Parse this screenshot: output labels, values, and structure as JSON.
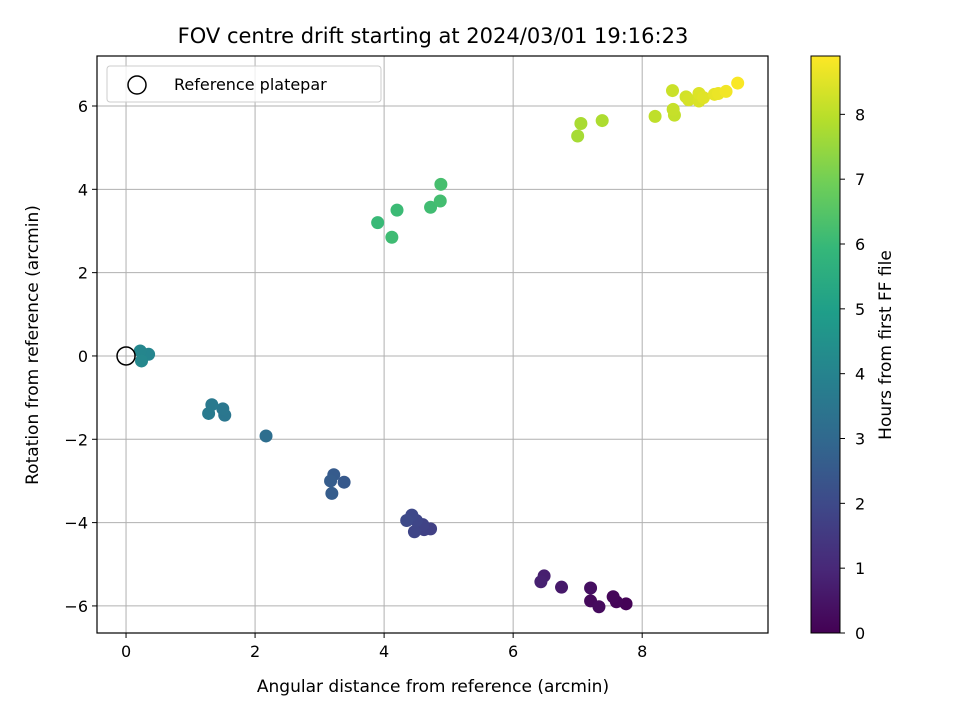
{
  "chart_data": {
    "type": "scatter",
    "title": "FOV centre drift starting at 2024/03/01 19:16:23",
    "xlabel": "Angular distance from reference (arcmin)",
    "ylabel": "Rotation from reference (arcmin)",
    "xlim": [
      -0.45,
      9.95
    ],
    "ylim": [
      -6.65,
      7.2
    ],
    "xticks": [
      0,
      2,
      4,
      6,
      8
    ],
    "yticks": [
      -6,
      -4,
      -2,
      0,
      2,
      4,
      6
    ],
    "xtick_labels": [
      "0",
      "2",
      "4",
      "6",
      "8"
    ],
    "ytick_labels": [
      "−6",
      "−4",
      "−2",
      "0",
      "2",
      "4",
      "6"
    ],
    "grid": true,
    "legend": {
      "placement": "top-left",
      "entries": [
        "Reference platepar"
      ]
    },
    "reference_point": {
      "x": 0,
      "y": 0
    },
    "colorbar": {
      "label": "Hours from first FF file",
      "range": [
        0,
        8.9
      ],
      "ticks": [
        0,
        1,
        2,
        3,
        4,
        5,
        6,
        7,
        8
      ],
      "colormap": "viridis"
    },
    "points": [
      {
        "x": 7.75,
        "y": -5.95,
        "hours": 0.05
      },
      {
        "x": 7.6,
        "y": -5.9,
        "hours": 0.1
      },
      {
        "x": 7.55,
        "y": -5.78,
        "hours": 0.15
      },
      {
        "x": 7.2,
        "y": -5.88,
        "hours": 0.2
      },
      {
        "x": 7.33,
        "y": -6.02,
        "hours": 0.25
      },
      {
        "x": 7.2,
        "y": -5.57,
        "hours": 0.35
      },
      {
        "x": 6.75,
        "y": -5.55,
        "hours": 0.6
      },
      {
        "x": 6.48,
        "y": -5.28,
        "hours": 0.75
      },
      {
        "x": 6.43,
        "y": -5.42,
        "hours": 0.8
      },
      {
        "x": 4.72,
        "y": -4.15,
        "hours": 1.7
      },
      {
        "x": 4.62,
        "y": -4.17,
        "hours": 1.75
      },
      {
        "x": 4.6,
        "y": -4.05,
        "hours": 1.8
      },
      {
        "x": 4.47,
        "y": -4.22,
        "hours": 1.85
      },
      {
        "x": 4.5,
        "y": -3.95,
        "hours": 1.9
      },
      {
        "x": 4.43,
        "y": -3.82,
        "hours": 1.95
      },
      {
        "x": 4.35,
        "y": -3.95,
        "hours": 2.0
      },
      {
        "x": 3.38,
        "y": -3.03,
        "hours": 2.5
      },
      {
        "x": 3.22,
        "y": -2.85,
        "hours": 2.55
      },
      {
        "x": 3.17,
        "y": -3.0,
        "hours": 2.6
      },
      {
        "x": 3.19,
        "y": -3.3,
        "hours": 2.62
      },
      {
        "x": 2.17,
        "y": -1.92,
        "hours": 3.2
      },
      {
        "x": 1.53,
        "y": -1.42,
        "hours": 3.5
      },
      {
        "x": 1.5,
        "y": -1.27,
        "hours": 3.55
      },
      {
        "x": 1.33,
        "y": -1.17,
        "hours": 3.6
      },
      {
        "x": 1.28,
        "y": -1.38,
        "hours": 3.65
      },
      {
        "x": 0.35,
        "y": 0.04,
        "hours": 4.05
      },
      {
        "x": 0.22,
        "y": 0.12,
        "hours": 4.1
      },
      {
        "x": 0.24,
        "y": -0.12,
        "hours": 4.15
      },
      {
        "x": 3.9,
        "y": 3.2,
        "hours": 6.0
      },
      {
        "x": 4.2,
        "y": 3.5,
        "hours": 6.05
      },
      {
        "x": 4.12,
        "y": 2.85,
        "hours": 6.1
      },
      {
        "x": 4.72,
        "y": 3.57,
        "hours": 6.15
      },
      {
        "x": 4.87,
        "y": 3.72,
        "hours": 6.2
      },
      {
        "x": 4.88,
        "y": 4.12,
        "hours": 6.25
      },
      {
        "x": 7.0,
        "y": 5.28,
        "hours": 7.7
      },
      {
        "x": 7.05,
        "y": 5.58,
        "hours": 7.75
      },
      {
        "x": 7.38,
        "y": 5.65,
        "hours": 7.8
      },
      {
        "x": 8.2,
        "y": 5.75,
        "hours": 8.05
      },
      {
        "x": 8.5,
        "y": 5.78,
        "hours": 8.1
      },
      {
        "x": 8.48,
        "y": 5.92,
        "hours": 8.15
      },
      {
        "x": 8.47,
        "y": 6.37,
        "hours": 8.2
      },
      {
        "x": 8.68,
        "y": 6.22,
        "hours": 8.3
      },
      {
        "x": 8.72,
        "y": 6.15,
        "hours": 8.35
      },
      {
        "x": 8.88,
        "y": 6.12,
        "hours": 8.4
      },
      {
        "x": 8.88,
        "y": 6.3,
        "hours": 8.45
      },
      {
        "x": 8.95,
        "y": 6.2,
        "hours": 8.5
      },
      {
        "x": 9.12,
        "y": 6.28,
        "hours": 8.6
      },
      {
        "x": 9.18,
        "y": 6.3,
        "hours": 8.65
      },
      {
        "x": 9.3,
        "y": 6.35,
        "hours": 8.75
      },
      {
        "x": 9.48,
        "y": 6.55,
        "hours": 8.85
      }
    ]
  }
}
